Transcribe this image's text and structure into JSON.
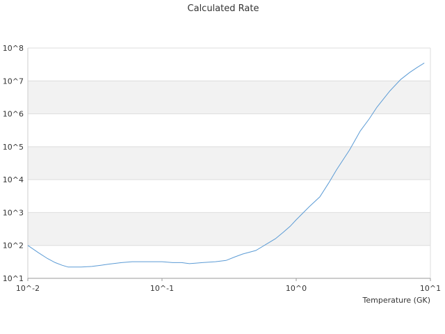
{
  "chart_data": {
    "type": "line",
    "title": "Calculated Rate",
    "xlabel": "Temperature (GK)",
    "ylabel": "",
    "x_scale": "log",
    "y_scale": "log",
    "xlim": [
      0.01,
      10
    ],
    "ylim": [
      10,
      100000000
    ],
    "x_tick_labels": [
      "10^-2",
      "10^-1",
      "10^0",
      "10^1"
    ],
    "x_tick_values": [
      0.01,
      0.1,
      1,
      10
    ],
    "y_tick_labels": [
      "10^1",
      "10^2",
      "10^3",
      "10^4",
      "10^5",
      "10^6",
      "10^7",
      "10^8"
    ],
    "y_tick_values": [
      10,
      100,
      1000,
      10000,
      100000,
      1000000,
      10000000,
      100000000
    ],
    "banded_background": true,
    "band_color": "#f2f2f2",
    "gridline_color": "#dddddd",
    "line_color": "#5b9bd5",
    "legend": "none",
    "series": [
      {
        "x": [
          0.01,
          0.012,
          0.014,
          0.016,
          0.018,
          0.02,
          0.025,
          0.03,
          0.035,
          0.04,
          0.05,
          0.06,
          0.07,
          0.08,
          0.09,
          0.1,
          0.12,
          0.14,
          0.16,
          0.18,
          0.2,
          0.25,
          0.3,
          0.35,
          0.4,
          0.5,
          0.6,
          0.7,
          0.8,
          0.9,
          1,
          1.25,
          1.5,
          1.75,
          2,
          2.5,
          3,
          3.5,
          4,
          5,
          6,
          7,
          8,
          9
        ],
        "y": [
          100,
          60,
          40,
          30,
          25,
          22,
          22,
          23,
          25,
          27,
          30,
          32,
          32,
          32,
          32,
          32,
          30,
          30,
          28,
          29,
          30,
          32,
          35,
          45,
          55,
          70,
          110,
          160,
          250,
          380,
          600,
          1500,
          3000,
          8000,
          20000,
          80000,
          300000,
          700000,
          1600000,
          5000000,
          11000000,
          18000000,
          26000000,
          35000000
        ]
      }
    ]
  }
}
